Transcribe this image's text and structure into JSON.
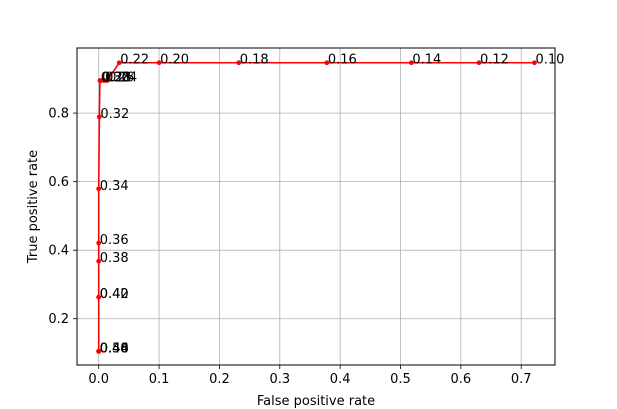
{
  "chart_data": {
    "type": "line",
    "title": "",
    "xlabel": "False positive rate",
    "ylabel": "True positive rate",
    "xlim": [
      -0.036,
      0.756
    ],
    "ylim": [
      0.065,
      0.99
    ],
    "xticks": [
      0.0,
      0.1,
      0.2,
      0.3,
      0.4,
      0.5,
      0.6,
      0.7
    ],
    "xtick_labels": [
      "0.0",
      "0.1",
      "0.2",
      "0.3",
      "0.4",
      "0.5",
      "0.6",
      "0.7"
    ],
    "yticks": [
      0.2,
      0.4,
      0.6,
      0.8
    ],
    "ytick_labels": [
      "0.2",
      "0.4",
      "0.6",
      "0.8"
    ],
    "grid": true,
    "color": "#ff0000",
    "series": [
      {
        "points": [
          {
            "x": 0.722,
            "y": 0.947,
            "label": "0.10"
          },
          {
            "x": 0.63,
            "y": 0.947,
            "label": "0.12"
          },
          {
            "x": 0.518,
            "y": 0.947,
            "label": "0.14"
          },
          {
            "x": 0.378,
            "y": 0.947,
            "label": "0.16"
          },
          {
            "x": 0.232,
            "y": 0.947,
            "label": "0.18"
          },
          {
            "x": 0.1,
            "y": 0.947,
            "label": "0.20"
          },
          {
            "x": 0.034,
            "y": 0.947,
            "label": "0.22"
          },
          {
            "x": 0.014,
            "y": 0.895,
            "label": "0.24"
          },
          {
            "x": 0.009,
            "y": 0.895,
            "label": "0.26"
          },
          {
            "x": 0.004,
            "y": 0.895,
            "label": "0.28"
          },
          {
            "x": 0.002,
            "y": 0.895,
            "label": "0.30"
          },
          {
            "x": 0.001,
            "y": 0.789,
            "label": "0.32"
          },
          {
            "x": 0.0,
            "y": 0.579,
            "label": "0.34"
          },
          {
            "x": 0.0,
            "y": 0.421,
            "label": "0.36"
          },
          {
            "x": 0.0,
            "y": 0.368,
            "label": "0.38"
          },
          {
            "x": 0.0,
            "y": 0.263,
            "label": "0.40"
          },
          {
            "x": 0.0,
            "y": 0.263,
            "label": "0.42"
          },
          {
            "x": 0.0,
            "y": 0.105,
            "label": "0.44"
          },
          {
            "x": 0.0,
            "y": 0.105,
            "label": "0.46"
          },
          {
            "x": 0.0,
            "y": 0.105,
            "label": "0.48"
          },
          {
            "x": 0.0,
            "y": 0.105,
            "label": "0.50"
          }
        ]
      }
    ]
  }
}
